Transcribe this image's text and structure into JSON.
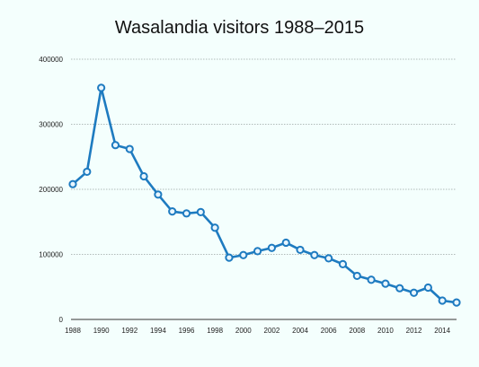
{
  "chart_data": {
    "type": "line",
    "title": "Wasalandia visitors 1988–2015",
    "xlabel": "",
    "ylabel": "",
    "xlim": [
      1988,
      2015
    ],
    "ylim": [
      0,
      400000
    ],
    "grid": "horizontal dotted",
    "legend": "none",
    "x": [
      1988,
      1989,
      1990,
      1991,
      1992,
      1993,
      1994,
      1995,
      1996,
      1997,
      1998,
      1999,
      2000,
      2001,
      2002,
      2003,
      2004,
      2005,
      2006,
      2007,
      2008,
      2009,
      2010,
      2011,
      2012,
      2013,
      2014,
      2015
    ],
    "series": [
      {
        "values": [
          208000,
          227000,
          356000,
          268000,
          262000,
          220000,
          192000,
          166000,
          163000,
          165000,
          141000,
          95000,
          99000,
          105000,
          110000,
          118000,
          107000,
          99000,
          94000,
          85000,
          67000,
          61000,
          55000,
          48000,
          41000,
          49000,
          29000,
          26000
        ],
        "color": "#1e7bc0"
      }
    ],
    "x_ticks": [
      "1988",
      "1990",
      "1992",
      "1994",
      "1996",
      "1998",
      "2000",
      "2002",
      "2004",
      "2006",
      "2008",
      "2010",
      "2012",
      "2014"
    ],
    "y_ticks": [
      "0",
      "100000",
      "200000",
      "300000",
      "400000"
    ]
  }
}
